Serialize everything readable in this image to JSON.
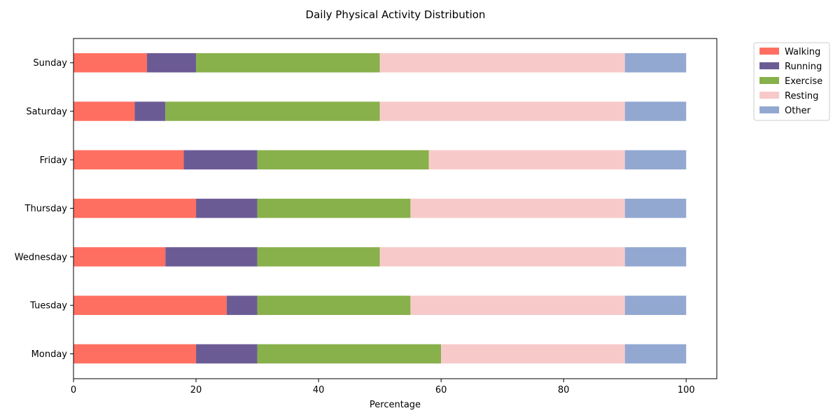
{
  "chart_data": {
    "type": "bar",
    "orientation": "horizontal",
    "stacked": true,
    "title": "Daily Physical Activity Distribution",
    "xlabel": "Percentage",
    "ylabel": "",
    "xlim": [
      0,
      105
    ],
    "xticks": [
      0,
      20,
      40,
      60,
      80,
      100
    ],
    "grid": false,
    "legend_position": "outside-top-right",
    "categories": [
      "Monday",
      "Tuesday",
      "Wednesday",
      "Thursday",
      "Friday",
      "Saturday",
      "Sunday"
    ],
    "series": [
      {
        "name": "Walking",
        "color": "#FF6F61",
        "values": [
          20,
          25,
          15,
          20,
          18,
          10,
          12
        ]
      },
      {
        "name": "Running",
        "color": "#6B5B95",
        "values": [
          10,
          5,
          15,
          10,
          12,
          5,
          8
        ]
      },
      {
        "name": "Exercise",
        "color": "#88B04B",
        "values": [
          30,
          25,
          20,
          25,
          28,
          35,
          30
        ]
      },
      {
        "name": "Resting",
        "color": "#F7CAC9",
        "values": [
          30,
          35,
          40,
          35,
          32,
          40,
          40
        ]
      },
      {
        "name": "Other",
        "color": "#92A8D1",
        "values": [
          10,
          10,
          10,
          10,
          10,
          10,
          10
        ]
      }
    ]
  }
}
